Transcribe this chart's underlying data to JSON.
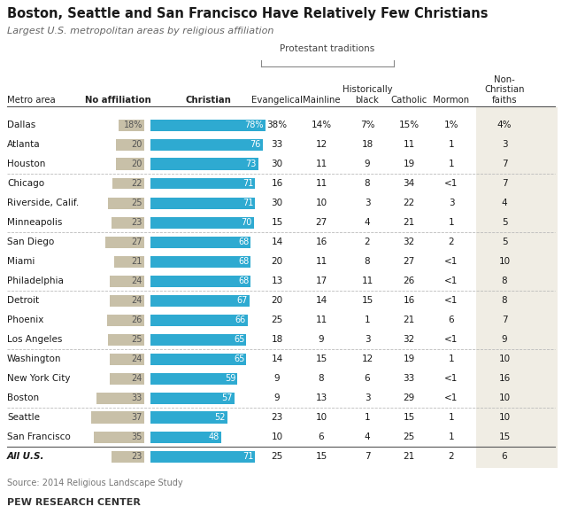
{
  "title": "Boston, Seattle and San Francisco Have Relatively Few Christians",
  "subtitle": "Largest U.S. metropolitan areas by religious affiliation",
  "source": "Source: 2014 Religious Landscape Study",
  "footer": "PEW RESEARCH CENTER",
  "protestant_label": "Protestant traditions",
  "rows": [
    {
      "metro": "Dallas",
      "no_aff": 18,
      "christian": 78,
      "evan": "38%",
      "main": "14%",
      "hist": "7%",
      "cath": "15%",
      "morm": "1%",
      "non": "4%",
      "no_aff_str": "18%",
      "chr_str": "78%",
      "sep_before": false,
      "italic": false
    },
    {
      "metro": "Atlanta",
      "no_aff": 20,
      "christian": 76,
      "evan": "33",
      "main": "12",
      "hist": "18",
      "cath": "11",
      "morm": "1",
      "non": "3",
      "no_aff_str": "20",
      "chr_str": "76",
      "sep_before": false,
      "italic": false
    },
    {
      "metro": "Houston",
      "no_aff": 20,
      "christian": 73,
      "evan": "30",
      "main": "11",
      "hist": "9",
      "cath": "19",
      "morm": "1",
      "non": "7",
      "no_aff_str": "20",
      "chr_str": "73",
      "sep_before": false,
      "italic": false
    },
    {
      "metro": "Chicago",
      "no_aff": 22,
      "christian": 71,
      "evan": "16",
      "main": "11",
      "hist": "8",
      "cath": "34",
      "morm": "<1",
      "non": "7",
      "no_aff_str": "22",
      "chr_str": "71",
      "sep_before": true,
      "italic": false
    },
    {
      "metro": "Riverside, Calif.",
      "no_aff": 25,
      "christian": 71,
      "evan": "30",
      "main": "10",
      "hist": "3",
      "cath": "22",
      "morm": "3",
      "non": "4",
      "no_aff_str": "25",
      "chr_str": "71",
      "sep_before": false,
      "italic": false
    },
    {
      "metro": "Minneapolis",
      "no_aff": 23,
      "christian": 70,
      "evan": "15",
      "main": "27",
      "hist": "4",
      "cath": "21",
      "morm": "1",
      "non": "5",
      "no_aff_str": "23",
      "chr_str": "70",
      "sep_before": false,
      "italic": false
    },
    {
      "metro": "San Diego",
      "no_aff": 27,
      "christian": 68,
      "evan": "14",
      "main": "16",
      "hist": "2",
      "cath": "32",
      "morm": "2",
      "non": "5",
      "no_aff_str": "27",
      "chr_str": "68",
      "sep_before": true,
      "italic": false
    },
    {
      "metro": "Miami",
      "no_aff": 21,
      "christian": 68,
      "evan": "20",
      "main": "11",
      "hist": "8",
      "cath": "27",
      "morm": "<1",
      "non": "10",
      "no_aff_str": "21",
      "chr_str": "68",
      "sep_before": false,
      "italic": false
    },
    {
      "metro": "Philadelphia",
      "no_aff": 24,
      "christian": 68,
      "evan": "13",
      "main": "17",
      "hist": "11",
      "cath": "26",
      "morm": "<1",
      "non": "8",
      "no_aff_str": "24",
      "chr_str": "68",
      "sep_before": false,
      "italic": false
    },
    {
      "metro": "Detroit",
      "no_aff": 24,
      "christian": 67,
      "evan": "20",
      "main": "14",
      "hist": "15",
      "cath": "16",
      "morm": "<1",
      "non": "8",
      "no_aff_str": "24",
      "chr_str": "67",
      "sep_before": true,
      "italic": false
    },
    {
      "metro": "Phoenix",
      "no_aff": 26,
      "christian": 66,
      "evan": "25",
      "main": "11",
      "hist": "1",
      "cath": "21",
      "morm": "6",
      "non": "7",
      "no_aff_str": "26",
      "chr_str": "66",
      "sep_before": false,
      "italic": false
    },
    {
      "metro": "Los Angeles",
      "no_aff": 25,
      "christian": 65,
      "evan": "18",
      "main": "9",
      "hist": "3",
      "cath": "32",
      "morm": "<1",
      "non": "9",
      "no_aff_str": "25",
      "chr_str": "65",
      "sep_before": false,
      "italic": false
    },
    {
      "metro": "Washington",
      "no_aff": 24,
      "christian": 65,
      "evan": "14",
      "main": "15",
      "hist": "12",
      "cath": "19",
      "morm": "1",
      "non": "10",
      "no_aff_str": "24",
      "chr_str": "65",
      "sep_before": true,
      "italic": false
    },
    {
      "metro": "New York City",
      "no_aff": 24,
      "christian": 59,
      "evan": "9",
      "main": "8",
      "hist": "6",
      "cath": "33",
      "morm": "<1",
      "non": "16",
      "no_aff_str": "24",
      "chr_str": "59",
      "sep_before": false,
      "italic": false
    },
    {
      "metro": "Boston",
      "no_aff": 33,
      "christian": 57,
      "evan": "9",
      "main": "13",
      "hist": "3",
      "cath": "29",
      "morm": "<1",
      "non": "10",
      "no_aff_str": "33",
      "chr_str": "57",
      "sep_before": false,
      "italic": false
    },
    {
      "metro": "Seattle",
      "no_aff": 37,
      "christian": 52,
      "evan": "23",
      "main": "10",
      "hist": "1",
      "cath": "15",
      "morm": "1",
      "non": "10",
      "no_aff_str": "37",
      "chr_str": "52",
      "sep_before": true,
      "italic": false
    },
    {
      "metro": "San Francisco",
      "no_aff": 35,
      "christian": 48,
      "evan": "10",
      "main": "6",
      "hist": "4",
      "cath": "25",
      "morm": "1",
      "non": "15",
      "no_aff_str": "35",
      "chr_str": "48",
      "sep_before": false,
      "italic": false
    },
    {
      "metro": "All U.S.",
      "no_aff": 23,
      "christian": 71,
      "evan": "25",
      "main": "15",
      "hist": "7",
      "cath": "21",
      "morm": "2",
      "non": "6",
      "no_aff_str": "23",
      "chr_str": "71",
      "sep_before": true,
      "italic": true
    }
  ],
  "bar_blue": "#2EAAD1",
  "bar_tan": "#C8C0A8",
  "non_bg": "#F0EDE4",
  "bg_color": "#FFFFFF",
  "sep_color": "#BBBBBB",
  "header_sep_color": "#555555"
}
